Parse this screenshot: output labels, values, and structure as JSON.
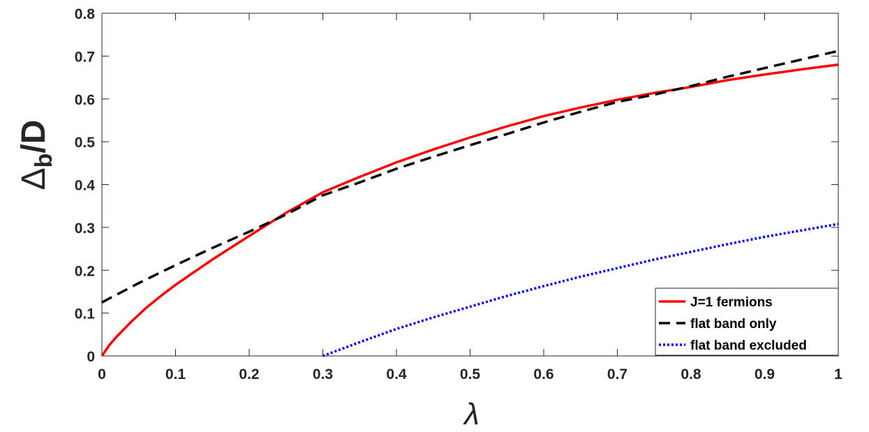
{
  "chart_data": {
    "type": "line",
    "title": "",
    "xlabel": "λ",
    "ylabel": {
      "symbol": "Δ",
      "subscript": "b",
      "suffix": "/D"
    },
    "xlim": [
      0,
      1
    ],
    "ylim": [
      0,
      0.8
    ],
    "xticks": [
      0,
      0.1,
      0.2,
      0.3,
      0.4,
      0.5,
      0.6,
      0.7,
      0.8,
      0.9,
      1
    ],
    "xtick_labels": [
      "0",
      "0.1",
      "0.2",
      "0.3",
      "0.4",
      "0.5",
      "0.6",
      "0.7",
      "0.8",
      "0.9",
      "1"
    ],
    "yticks": [
      0,
      0.1,
      0.2,
      0.3,
      0.4,
      0.5,
      0.6,
      0.7,
      0.8
    ],
    "ytick_labels": [
      "0",
      "0.1",
      "0.2",
      "0.3",
      "0.4",
      "0.5",
      "0.6",
      "0.7",
      "0.8"
    ],
    "grid": false,
    "legend_position": "bottom-right",
    "series": [
      {
        "name": "J=1 fermions",
        "color": "#ff0000",
        "style": "solid",
        "x": [
          0,
          0.01,
          0.02,
          0.04,
          0.06,
          0.08,
          0.1,
          0.15,
          0.2,
          0.25,
          0.3,
          0.35,
          0.4,
          0.45,
          0.5,
          0.55,
          0.6,
          0.65,
          0.7,
          0.75,
          0.8,
          0.85,
          0.9,
          0.95,
          1.0
        ],
        "y": [
          0,
          0.025,
          0.045,
          0.08,
          0.112,
          0.14,
          0.166,
          0.225,
          0.28,
          0.334,
          0.382,
          0.418,
          0.452,
          0.482,
          0.51,
          0.536,
          0.56,
          0.58,
          0.598,
          0.614,
          0.628,
          0.644,
          0.657,
          0.669,
          0.68
        ]
      },
      {
        "name": "flat band only",
        "color": "#000000",
        "style": "dashed",
        "x": [
          0,
          0.05,
          0.1,
          0.15,
          0.2,
          0.25,
          0.3,
          0.35,
          0.4,
          0.45,
          0.5,
          0.55,
          0.6,
          0.65,
          0.7,
          0.75,
          0.8,
          0.85,
          0.9,
          0.95,
          1.0
        ],
        "y": [
          0.125,
          0.17,
          0.212,
          0.252,
          0.29,
          0.33,
          0.375,
          0.405,
          0.437,
          0.465,
          0.492,
          0.518,
          0.545,
          0.57,
          0.593,
          0.61,
          0.63,
          0.652,
          0.672,
          0.692,
          0.712
        ]
      },
      {
        "name": "flat band excluded",
        "color": "#0000ff",
        "style": "dotted",
        "x": [
          0.3,
          0.35,
          0.4,
          0.45,
          0.5,
          0.55,
          0.6,
          0.65,
          0.7,
          0.75,
          0.8,
          0.85,
          0.9,
          0.95,
          1.0
        ],
        "y": [
          0,
          0.032,
          0.063,
          0.09,
          0.115,
          0.14,
          0.163,
          0.185,
          0.205,
          0.225,
          0.243,
          0.261,
          0.278,
          0.293,
          0.308
        ]
      }
    ]
  }
}
